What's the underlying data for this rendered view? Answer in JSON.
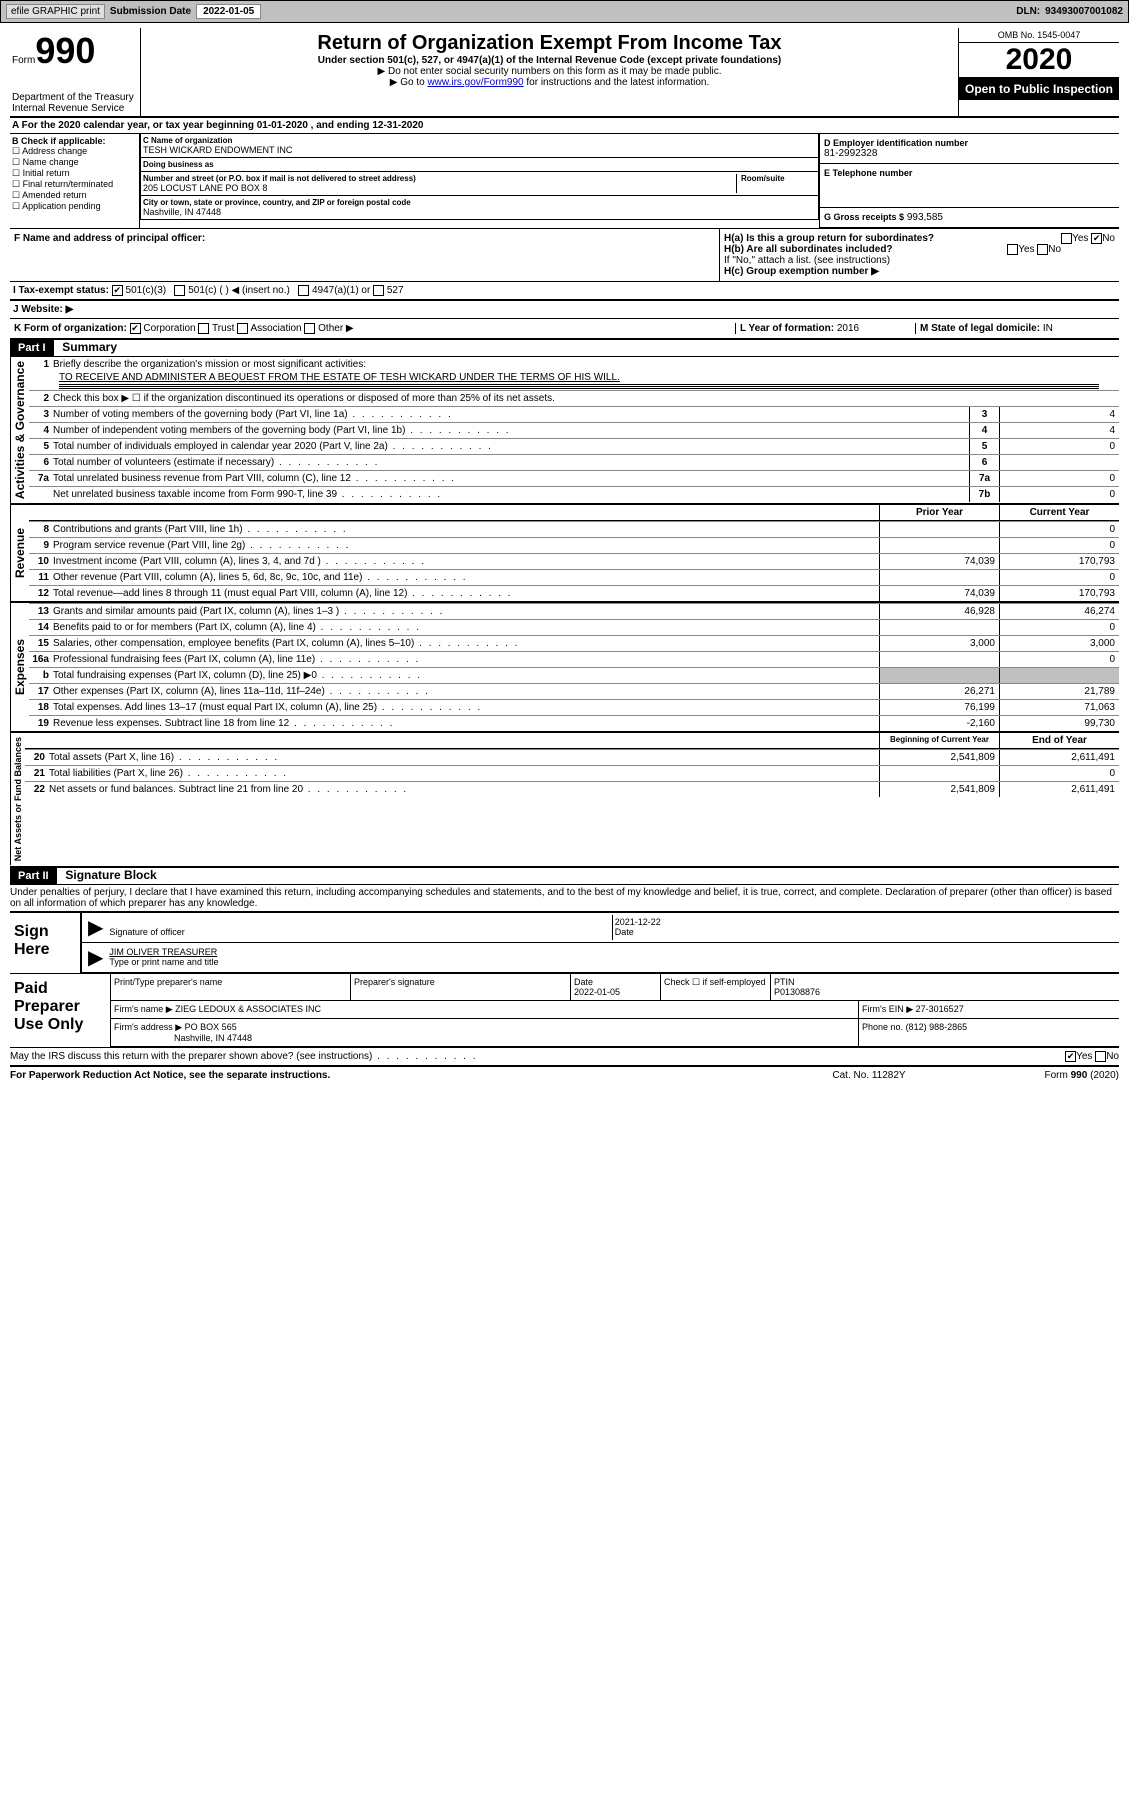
{
  "header": {
    "efile": "efile GRAPHIC print",
    "sub_label": "Submission Date",
    "sub_date": "2022-01-05",
    "dln_label": "DLN:",
    "dln": "93493007001082"
  },
  "form": {
    "form_label": "Form",
    "form_num": "990",
    "dept": "Department of the Treasury\nInternal Revenue Service",
    "title": "Return of Organization Exempt From Income Tax",
    "subtitle": "Under section 501(c), 527, or 4947(a)(1) of the Internal Revenue Code (except private foundations)",
    "note1": "▶ Do not enter social security numbers on this form as it may be made public.",
    "note2_pre": "▶ Go to ",
    "note2_link": "www.irs.gov/Form990",
    "note2_post": " for instructions and the latest information.",
    "omb": "OMB No. 1545-0047",
    "year": "2020",
    "open": "Open to Public Inspection"
  },
  "sectionA": "A For the 2020 calendar year, or tax year beginning 01-01-2020    , and ending 12-31-2020",
  "colB": {
    "hdr": "B Check if applicable:",
    "opts": [
      "Address change",
      "Name change",
      "Initial return",
      "Final return/terminated",
      "Amended return",
      "Application pending"
    ]
  },
  "colC": {
    "name_lbl": "C Name of organization",
    "name": "TESH WICKARD ENDOWMENT INC",
    "dba_lbl": "Doing business as",
    "dba": "",
    "addr_lbl": "Number and street (or P.O. box if mail is not delivered to street address)",
    "room_lbl": "Room/suite",
    "addr": "205 LOCUST LANE PO BOX 8",
    "city_lbl": "City or town, state or province, country, and ZIP or foreign postal code",
    "city": "Nashville, IN  47448"
  },
  "colD": {
    "ein_lbl": "D Employer identification number",
    "ein": "81-2992328",
    "tel_lbl": "E Telephone number",
    "tel": "",
    "gross_lbl": "G Gross receipts $",
    "gross": "993,585"
  },
  "rowF": {
    "lbl": "F  Name and address of principal officer:",
    "val": "",
    "ha": "H(a)  Is this a group return for subordinates?",
    "hb": "H(b)  Are all subordinates included?",
    "hb_note": "If \"No,\" attach a list. (see instructions)",
    "hc": "H(c)  Group exemption number ▶",
    "yes": "Yes",
    "no": "No"
  },
  "rowI": {
    "lbl": "I    Tax-exempt status:",
    "o1": "501(c)(3)",
    "o2": "501(c) (  ) ◀ (insert no.)",
    "o3": "4947(a)(1) or",
    "o4": "527"
  },
  "rowJ": {
    "lbl": "J   Website: ▶",
    "val": ""
  },
  "rowK": {
    "lbl": "K Form of organization:",
    "o1": "Corporation",
    "o2": "Trust",
    "o3": "Association",
    "o4": "Other ▶",
    "l_lbl": "L Year of formation:",
    "l_val": "2016",
    "m_lbl": "M State of legal domicile:",
    "m_val": "IN"
  },
  "part1": {
    "hdr": "Part I",
    "title": "Summary"
  },
  "governance": {
    "sidebar": "Activities & Governance",
    "q1": "Briefly describe the organization's mission or most significant activities:",
    "q1a": "TO RECEIVE AND ADMINISTER A BEQUEST FROM THE ESTATE OF TESH WICKARD UNDER THE TERMS OF HIS WILL.",
    "q2": "Check this box ▶ ☐  if the organization discontinued its operations or disposed of more than 25% of its net assets.",
    "lines": [
      {
        "n": "3",
        "d": "Number of voting members of the governing body (Part VI, line 1a)",
        "b": "3",
        "v": "4"
      },
      {
        "n": "4",
        "d": "Number of independent voting members of the governing body (Part VI, line 1b)",
        "b": "4",
        "v": "4"
      },
      {
        "n": "5",
        "d": "Total number of individuals employed in calendar year 2020 (Part V, line 2a)",
        "b": "5",
        "v": "0"
      },
      {
        "n": "6",
        "d": "Total number of volunteers (estimate if necessary)",
        "b": "6",
        "v": ""
      },
      {
        "n": "7a",
        "d": "Total unrelated business revenue from Part VIII, column (C), line 12",
        "b": "7a",
        "v": "0"
      },
      {
        "n": "",
        "d": "Net unrelated business taxable income from Form 990-T, line 39",
        "b": "7b",
        "v": "0"
      }
    ]
  },
  "revenue": {
    "sidebar": "Revenue",
    "hdr_prior": "Prior Year",
    "hdr_curr": "Current Year",
    "lines": [
      {
        "n": "8",
        "d": "Contributions and grants (Part VIII, line 1h)",
        "p": "",
        "c": "0"
      },
      {
        "n": "9",
        "d": "Program service revenue (Part VIII, line 2g)",
        "p": "",
        "c": "0"
      },
      {
        "n": "10",
        "d": "Investment income (Part VIII, column (A), lines 3, 4, and 7d )",
        "p": "74,039",
        "c": "170,793"
      },
      {
        "n": "11",
        "d": "Other revenue (Part VIII, column (A), lines 5, 6d, 8c, 9c, 10c, and 11e)",
        "p": "",
        "c": "0"
      },
      {
        "n": "12",
        "d": "Total revenue—add lines 8 through 11 (must equal Part VIII, column (A), line 12)",
        "p": "74,039",
        "c": "170,793"
      }
    ]
  },
  "expenses": {
    "sidebar": "Expenses",
    "lines": [
      {
        "n": "13",
        "d": "Grants and similar amounts paid (Part IX, column (A), lines 1–3 )",
        "p": "46,928",
        "c": "46,274"
      },
      {
        "n": "14",
        "d": "Benefits paid to or for members (Part IX, column (A), line 4)",
        "p": "",
        "c": "0"
      },
      {
        "n": "15",
        "d": "Salaries, other compensation, employee benefits (Part IX, column (A), lines 5–10)",
        "p": "3,000",
        "c": "3,000"
      },
      {
        "n": "16a",
        "d": "Professional fundraising fees (Part IX, column (A), line 11e)",
        "p": "",
        "c": "0"
      },
      {
        "n": "b",
        "d": "Total fundraising expenses (Part IX, column (D), line 25) ▶0",
        "p": "shade",
        "c": "shade"
      },
      {
        "n": "17",
        "d": "Other expenses (Part IX, column (A), lines 11a–11d, 11f–24e)",
        "p": "26,271",
        "c": "21,789"
      },
      {
        "n": "18",
        "d": "Total expenses. Add lines 13–17 (must equal Part IX, column (A), line 25)",
        "p": "76,199",
        "c": "71,063"
      },
      {
        "n": "19",
        "d": "Revenue less expenses. Subtract line 18 from line 12",
        "p": "-2,160",
        "c": "99,730"
      }
    ]
  },
  "netassets": {
    "sidebar": "Net Assets or Fund Balances",
    "hdr_begin": "Beginning of Current Year",
    "hdr_end": "End of Year",
    "lines": [
      {
        "n": "20",
        "d": "Total assets (Part X, line 16)",
        "p": "2,541,809",
        "c": "2,611,491"
      },
      {
        "n": "21",
        "d": "Total liabilities (Part X, line 26)",
        "p": "",
        "c": "0"
      },
      {
        "n": "22",
        "d": "Net assets or fund balances. Subtract line 21 from line 20",
        "p": "2,541,809",
        "c": "2,611,491"
      }
    ]
  },
  "part2": {
    "hdr": "Part II",
    "title": "Signature Block"
  },
  "perjury": "Under penalties of perjury, I declare that I have examined this return, including accompanying schedules and statements, and to the best of my knowledge and belief, it is true, correct, and complete. Declaration of preparer (other than officer) is based on all information of which preparer has any knowledge.",
  "sign": {
    "label": "Sign Here",
    "sig_lbl": "Signature of officer",
    "date_lbl": "Date",
    "date": "2021-12-22",
    "name": "JIM OLIVER  TREASURER",
    "name_lbl": "Type or print name and title"
  },
  "prep": {
    "label": "Paid Preparer Use Only",
    "name_lbl": "Print/Type preparer's name",
    "sig_lbl": "Preparer's signature",
    "date_lbl": "Date",
    "date": "2022-01-05",
    "self_lbl": "Check ☐ if self-employed",
    "ptin_lbl": "PTIN",
    "ptin": "P01308876",
    "firm_lbl": "Firm's name    ▶",
    "firm": "ZIEG LEDOUX & ASSOCIATES INC",
    "ein_lbl": "Firm's EIN ▶",
    "ein": "27-3016527",
    "addr_lbl": "Firm's address ▶",
    "addr1": "PO BOX 565",
    "addr2": "Nashville, IN  47448",
    "phone_lbl": "Phone no.",
    "phone": "(812) 988-2865"
  },
  "discuss": "May the IRS discuss this return with the preparer shown above? (see instructions)",
  "footer": {
    "l": "For Paperwork Reduction Act Notice, see the separate instructions.",
    "m": "Cat. No. 11282Y",
    "r": "Form 990 (2020)"
  }
}
